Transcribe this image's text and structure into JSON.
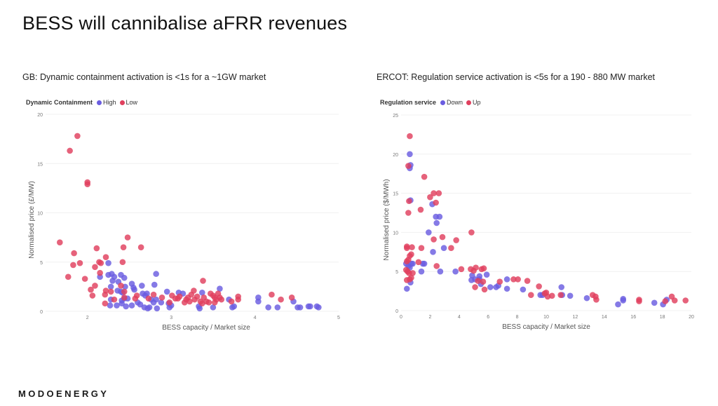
{
  "page": {
    "title": "BESS will cannibalise aFRR revenues",
    "logo": "MODOENERGY"
  },
  "colors": {
    "series_a": "#6a5de0",
    "series_b": "#e0405e",
    "grid": "#f0f0f0",
    "tick": "#777777"
  },
  "chart_data": [
    {
      "type": "scatter",
      "title": "GB: Dynamic containment activation is <1s for a ~1GW market",
      "legend_title": "Dynamic Containment",
      "legend_position": "top-left",
      "xlabel": "BESS capacity / Market size",
      "ylabel": "Normalised price (£/MW)",
      "xlim": [
        1.5,
        5
      ],
      "ylim": [
        0,
        20
      ],
      "xticks": [
        2,
        3,
        4,
        5
      ],
      "yticks": [
        0,
        5,
        10,
        15,
        20
      ],
      "grid": true,
      "series": [
        {
          "name": "High",
          "color": "#6a5de0",
          "points": [
            [
              2.25,
              4.9
            ],
            [
              2.25,
              3.7
            ],
            [
              2.29,
              3.8
            ],
            [
              2.3,
              3.1
            ],
            [
              2.32,
              3.5
            ],
            [
              2.4,
              3.7
            ],
            [
              2.44,
              3.4
            ],
            [
              2.37,
              3.0
            ],
            [
              2.28,
              2.5
            ],
            [
              2.15,
              3.5
            ],
            [
              2.45,
              2.5
            ],
            [
              2.53,
              2.8
            ],
            [
              2.55,
              2.4
            ],
            [
              2.56,
              2.2
            ],
            [
              2.65,
              2.6
            ],
            [
              2.8,
              2.7
            ],
            [
              2.82,
              3.8
            ],
            [
              2.36,
              2.1
            ],
            [
              2.4,
              2.0
            ],
            [
              2.42,
              1.9
            ],
            [
              2.28,
              1.2
            ],
            [
              2.27,
              0.6
            ],
            [
              2.35,
              0.6
            ],
            [
              2.41,
              0.8
            ],
            [
              2.41,
              1.1
            ],
            [
              2.44,
              1.3
            ],
            [
              2.46,
              0.5
            ],
            [
              2.48,
              1.3
            ],
            [
              2.53,
              0.6
            ],
            [
              2.6,
              0.9
            ],
            [
              2.63,
              0.7
            ],
            [
              2.66,
              1.8
            ],
            [
              2.69,
              1.6
            ],
            [
              2.68,
              0.4
            ],
            [
              2.72,
              0.3
            ],
            [
              2.74,
              0.4
            ],
            [
              2.71,
              1.8
            ],
            [
              2.76,
              1.2
            ],
            [
              2.79,
              0.9
            ],
            [
              2.82,
              1.2
            ],
            [
              2.83,
              0.3
            ],
            [
              2.88,
              0.9
            ],
            [
              2.95,
              2.0
            ],
            [
              2.97,
              0.8
            ],
            [
              2.98,
              0.4
            ],
            [
              3.0,
              0.6
            ],
            [
              3.09,
              1.9
            ],
            [
              3.14,
              1.8
            ],
            [
              3.33,
              0.5
            ],
            [
              3.34,
              0.3
            ],
            [
              3.37,
              1.9
            ],
            [
              3.58,
              2.3
            ],
            [
              3.5,
              0.4
            ],
            [
              3.69,
              1.2
            ],
            [
              3.73,
              0.4
            ],
            [
              3.75,
              0.5
            ],
            [
              4.04,
              1.4
            ],
            [
              4.04,
              1.0
            ],
            [
              4.16,
              0.4
            ],
            [
              4.27,
              0.4
            ],
            [
              4.46,
              1.0
            ],
            [
              4.51,
              0.4
            ],
            [
              4.54,
              0.4
            ],
            [
              4.64,
              0.5
            ],
            [
              4.66,
              0.5
            ],
            [
              4.74,
              0.5
            ],
            [
              4.76,
              0.4
            ]
          ]
        },
        {
          "name": "Low",
          "color": "#e0405e",
          "points": [
            [
              1.88,
              17.8
            ],
            [
              1.79,
              16.3
            ],
            [
              2.0,
              13.1
            ],
            [
              2.0,
              12.9
            ],
            [
              1.67,
              7.0
            ],
            [
              1.84,
              5.9
            ],
            [
              1.83,
              4.7
            ],
            [
              1.91,
              4.9
            ],
            [
              1.77,
              3.5
            ],
            [
              1.97,
              3.3
            ],
            [
              2.11,
              6.4
            ],
            [
              2.09,
              4.5
            ],
            [
              2.14,
              5.0
            ],
            [
              2.16,
              4.9
            ],
            [
              2.22,
              5.5
            ],
            [
              2.15,
              3.9
            ],
            [
              2.09,
              2.6
            ],
            [
              2.04,
              2.2
            ],
            [
              2.06,
              1.6
            ],
            [
              2.21,
              1.7
            ],
            [
              2.22,
              2.1
            ],
            [
              2.21,
              0.8
            ],
            [
              2.28,
              2.0
            ],
            [
              2.32,
              1.2
            ],
            [
              2.43,
              6.5
            ],
            [
              2.48,
              7.5
            ],
            [
              2.64,
              6.5
            ],
            [
              2.42,
              5.0
            ],
            [
              2.4,
              2.6
            ],
            [
              2.44,
              2.0
            ],
            [
              2.44,
              1.4
            ],
            [
              2.57,
              1.3
            ],
            [
              2.59,
              1.6
            ],
            [
              2.73,
              1.3
            ],
            [
              2.79,
              1.7
            ],
            [
              2.89,
              1.4
            ],
            [
              2.98,
              0.9
            ],
            [
              3.01,
              1.6
            ],
            [
              3.05,
              1.3
            ],
            [
              3.08,
              1.3
            ],
            [
              3.1,
              1.5
            ],
            [
              3.16,
              0.9
            ],
            [
              3.18,
              1.2
            ],
            [
              3.2,
              1.4
            ],
            [
              3.22,
              1.0
            ],
            [
              3.24,
              1.7
            ],
            [
              3.27,
              2.1
            ],
            [
              3.28,
              1.2
            ],
            [
              3.31,
              1.5
            ],
            [
              3.35,
              1.0
            ],
            [
              3.37,
              0.8
            ],
            [
              3.39,
              1.4
            ],
            [
              3.38,
              3.1
            ],
            [
              3.42,
              1.0
            ],
            [
              3.45,
              0.9
            ],
            [
              3.47,
              1.8
            ],
            [
              3.5,
              1.6
            ],
            [
              3.52,
              1.4
            ],
            [
              3.54,
              1.2
            ],
            [
              3.56,
              1.8
            ],
            [
              3.58,
              1.4
            ],
            [
              3.6,
              1.2
            ],
            [
              3.52,
              0.9
            ],
            [
              3.72,
              1.0
            ],
            [
              3.8,
              1.5
            ],
            [
              3.8,
              1.2
            ],
            [
              4.2,
              1.7
            ],
            [
              4.31,
              1.2
            ],
            [
              4.44,
              1.4
            ]
          ]
        }
      ]
    },
    {
      "type": "scatter",
      "title": "ERCOT: Regulation service activation is <5s for a 190 - 880 MW market",
      "legend_title": "Regulation service",
      "legend_position": "top-left",
      "xlabel": "BESS capacity / Market size",
      "ylabel": "Normalised price ($/MWh)",
      "xlim": [
        0,
        20
      ],
      "ylim": [
        0,
        25
      ],
      "xticks": [
        0,
        2,
        4,
        6,
        8,
        10,
        12,
        14,
        16,
        18,
        20
      ],
      "yticks": [
        0,
        5,
        10,
        15,
        20,
        25
      ],
      "grid": true,
      "series": [
        {
          "name": "Down",
          "color": "#6a5de0",
          "points": [
            [
              0.6,
              20.0
            ],
            [
              0.65,
              18.6
            ],
            [
              0.6,
              18.2
            ],
            [
              0.65,
              14.1
            ],
            [
              0.35,
              6.0
            ],
            [
              0.5,
              5.7
            ],
            [
              0.6,
              5.5
            ],
            [
              0.7,
              6.0
            ],
            [
              0.8,
              6.0
            ],
            [
              0.65,
              3.6
            ],
            [
              0.4,
              2.8
            ],
            [
              1.5,
              6.0
            ],
            [
              1.6,
              6.0
            ],
            [
              1.4,
              5.0
            ],
            [
              2.15,
              13.6
            ],
            [
              2.4,
              12.0
            ],
            [
              2.65,
              12.0
            ],
            [
              2.45,
              11.2
            ],
            [
              1.9,
              10.0
            ],
            [
              2.2,
              7.5
            ],
            [
              2.95,
              8.0
            ],
            [
              2.7,
              5.0
            ],
            [
              3.75,
              5.0
            ],
            [
              4.9,
              4.5
            ],
            [
              4.85,
              3.9
            ],
            [
              5.1,
              4.0
            ],
            [
              5.4,
              4.4
            ],
            [
              5.4,
              4.0
            ],
            [
              5.5,
              3.4
            ],
            [
              5.9,
              4.6
            ],
            [
              6.15,
              3.0
            ],
            [
              6.55,
              3.0
            ],
            [
              6.7,
              3.2
            ],
            [
              7.3,
              4.0
            ],
            [
              7.3,
              2.8
            ],
            [
              8.4,
              2.7
            ],
            [
              9.6,
              2.0
            ],
            [
              9.75,
              2.0
            ],
            [
              11.05,
              3.0
            ],
            [
              11.1,
              2.0
            ],
            [
              11.65,
              1.9
            ],
            [
              12.8,
              1.6
            ],
            [
              14.95,
              0.8
            ],
            [
              15.3,
              1.5
            ],
            [
              15.3,
              1.3
            ],
            [
              17.45,
              1.0
            ],
            [
              18.05,
              0.8
            ],
            [
              18.3,
              1.4
            ]
          ]
        },
        {
          "name": "Up",
          "color": "#e0405e",
          "points": [
            [
              0.6,
              22.3
            ],
            [
              0.5,
              18.5
            ],
            [
              0.55,
              14.0
            ],
            [
              0.5,
              12.5
            ],
            [
              1.6,
              17.1
            ],
            [
              1.35,
              12.9
            ],
            [
              2.0,
              14.5
            ],
            [
              2.25,
              15.0
            ],
            [
              2.6,
              15.0
            ],
            [
              2.4,
              13.8
            ],
            [
              2.25,
              9.1
            ],
            [
              2.85,
              9.4
            ],
            [
              3.8,
              9.0
            ],
            [
              3.45,
              8.0
            ],
            [
              4.85,
              10.0
            ],
            [
              0.4,
              8.2
            ],
            [
              0.4,
              8.0
            ],
            [
              0.75,
              8.1
            ],
            [
              1.4,
              8.0
            ],
            [
              0.7,
              7.2
            ],
            [
              0.6,
              7.0
            ],
            [
              0.5,
              6.5
            ],
            [
              0.4,
              6.3
            ],
            [
              1.2,
              6.2
            ],
            [
              0.35,
              5.2
            ],
            [
              0.45,
              5.0
            ],
            [
              0.55,
              4.8
            ],
            [
              0.8,
              4.8
            ],
            [
              0.4,
              3.9
            ],
            [
              0.6,
              4.0
            ],
            [
              0.7,
              4.2
            ],
            [
              2.45,
              5.7
            ],
            [
              4.15,
              5.3
            ],
            [
              4.8,
              5.3
            ],
            [
              5.0,
              5.1
            ],
            [
              5.15,
              5.5
            ],
            [
              5.55,
              5.3
            ],
            [
              5.7,
              5.4
            ],
            [
              5.3,
              3.8
            ],
            [
              5.65,
              3.7
            ],
            [
              5.1,
              3.0
            ],
            [
              5.75,
              2.7
            ],
            [
              6.8,
              3.7
            ],
            [
              7.75,
              4.0
            ],
            [
              8.05,
              4.0
            ],
            [
              8.7,
              3.8
            ],
            [
              9.5,
              3.1
            ],
            [
              8.95,
              2.0
            ],
            [
              9.9,
              2.2
            ],
            [
              10.0,
              2.3
            ],
            [
              10.1,
              1.8
            ],
            [
              10.4,
              1.9
            ],
            [
              11.0,
              2.0
            ],
            [
              13.2,
              2.0
            ],
            [
              13.4,
              1.8
            ],
            [
              13.45,
              1.4
            ],
            [
              16.4,
              1.4
            ],
            [
              16.4,
              1.2
            ],
            [
              18.2,
              1.2
            ],
            [
              18.65,
              1.8
            ],
            [
              18.85,
              1.3
            ],
            [
              19.6,
              1.3
            ]
          ]
        }
      ]
    }
  ]
}
